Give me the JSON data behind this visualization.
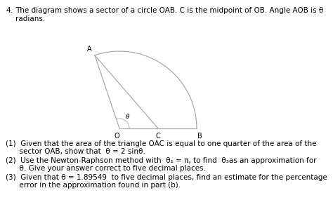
{
  "title_num": "4.",
  "title_line1": "The diagram shows a sector of a circle OAB. C is the midpoint of OB. Angle AOB is θ",
  "title_line2": "radians.",
  "q1_line1": "(1)  Given that the area of the triangle OAC is equal to one quarter of the area of the",
  "q1_line2": "      sector OAB, show that  θ = 2 sinθ.",
  "q2_line1": "(2)  Use the Newton-Raphson method with  θ₁ = π, to find  θ₃as an approximation for",
  "q2_line2": "      θ. Give your answer correct to five decimal places.",
  "q3_line1": "(3)  Given that θ = 1.89549  to five decimal places, find an estimate for the percentage",
  "q3_line2": "      error in the approximation found in part (b).",
  "bg_color": "#ffffff",
  "text_color": "#000000",
  "diagram_line_color": "#aaaaaa",
  "label_A": "A",
  "label_O": "O",
  "label_B": "B",
  "label_C": "C",
  "label_theta": "θ",
  "theta": 1.89549,
  "title_fontsize": 7.5,
  "body_fontsize": 7.5
}
